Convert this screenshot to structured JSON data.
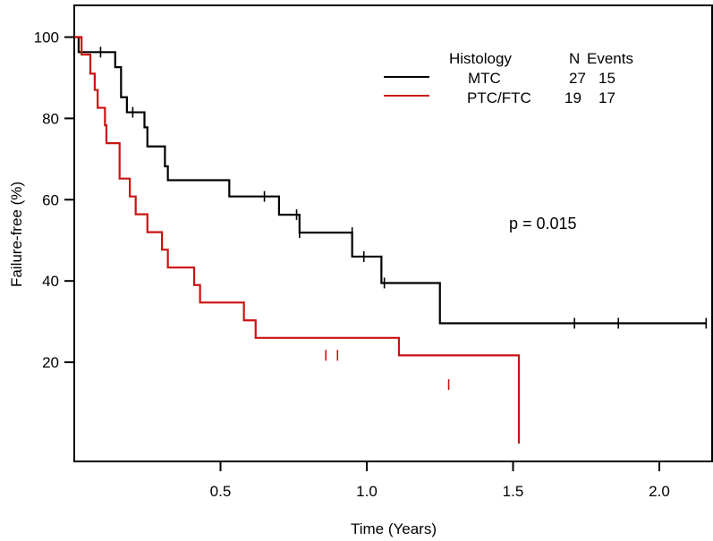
{
  "chart_data": {
    "type": "line",
    "step": "post",
    "xlabel": "Time (Years)",
    "ylabel": "Failure-free (%)",
    "xlim": [
      0,
      2.2
    ],
    "ylim": [
      0,
      105
    ],
    "x_ticks": [
      0.5,
      1.0,
      1.5,
      2.0
    ],
    "x_tick_labels": [
      "0.5",
      "1.0",
      "1.5",
      "2.0"
    ],
    "y_ticks": [
      20,
      40,
      60,
      80,
      100
    ],
    "y_tick_labels": [
      "20",
      "40",
      "60",
      "80",
      "100"
    ],
    "grid": false,
    "legend": {
      "placement": "top-right",
      "headers": [
        "Histology",
        "N",
        "Events"
      ],
      "rows": [
        {
          "name": "MTC",
          "n": "27",
          "events": "15"
        },
        {
          "name": "PTC/FTC",
          "n": "19",
          "events": "17"
        }
      ]
    },
    "annotation": "p = 0.015",
    "series": [
      {
        "name": "MTC",
        "color": "#000000",
        "x": [
          0,
          0.015,
          0.14,
          0.16,
          0.18,
          0.24,
          0.25,
          0.31,
          0.32,
          0.53,
          0.7,
          0.77,
          0.95,
          1.05,
          1.25,
          2.16
        ],
        "y": [
          100,
          96.3,
          92.6,
          85.2,
          81.5,
          77.8,
          73.1,
          68.2,
          64.8,
          60.8,
          56.3,
          51.9,
          46.0,
          39.5,
          29.6,
          29.6
        ],
        "censored": [
          {
            "x": 0.09,
            "y": 96.3
          },
          {
            "x": 0.2,
            "y": 81.5
          },
          {
            "x": 0.65,
            "y": 60.8
          },
          {
            "x": 0.76,
            "y": 56.3
          },
          {
            "x": 0.77,
            "y": 51.9
          },
          {
            "x": 0.95,
            "y": 51.9
          },
          {
            "x": 0.99,
            "y": 46.0
          },
          {
            "x": 1.06,
            "y": 39.5
          },
          {
            "x": 1.71,
            "y": 29.6
          },
          {
            "x": 1.86,
            "y": 29.6
          },
          {
            "x": 2.16,
            "y": 29.6
          }
        ]
      },
      {
        "name": "PTC/FTC",
        "color": "#cc1111",
        "x": [
          0,
          0.025,
          0.055,
          0.07,
          0.08,
          0.105,
          0.11,
          0.155,
          0.19,
          0.21,
          0.25,
          0.3,
          0.32,
          0.41,
          0.43,
          0.58,
          0.62,
          1.11,
          1.52
        ],
        "y": [
          100,
          95.7,
          91.0,
          87.0,
          82.6,
          78.3,
          73.9,
          65.2,
          60.8,
          56.4,
          52.0,
          47.7,
          43.3,
          39.0,
          34.7,
          30.3,
          26.0,
          21.7,
          14.5
        ],
        "drop_to": 0,
        "censored": [
          {
            "x": 0.86,
            "y": 21.7
          },
          {
            "x": 0.9,
            "y": 21.7
          },
          {
            "x": 1.28,
            "y": 14.5
          }
        ]
      }
    ]
  }
}
